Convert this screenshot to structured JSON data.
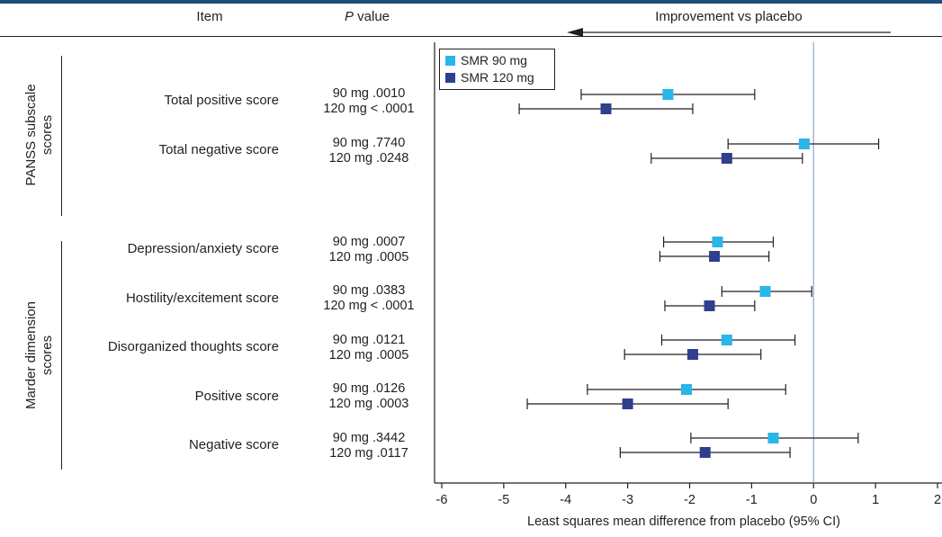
{
  "header": {
    "item": "Item",
    "p_italic": "P",
    "p_rest": " value",
    "improvement": "Improvement vs placebo"
  },
  "groups": [
    {
      "label_line1": "PANSS subscale",
      "label_line2": "scores"
    },
    {
      "label_line1": "Marder dimension",
      "label_line2": "scores"
    }
  ],
  "legend": [
    {
      "label": "SMR 90 mg",
      "color": "#29b6e8"
    },
    {
      "label": "SMR 120 mg",
      "color": "#2e3f8f"
    }
  ],
  "rows": [
    {
      "label": "Total positive score",
      "p90": "90 mg  .0010",
      "p120": "120 mg < .0001"
    },
    {
      "label": "Total negative score",
      "p90": "90 mg  .7740",
      "p120": "120 mg  .0248"
    },
    {
      "label": "Depression/anxiety score",
      "p90": "90 mg  .0007",
      "p120": "120 mg  .0005"
    },
    {
      "label": "Hostility/excitement score",
      "p90": "90 mg  .0383",
      "p120": "120 mg < .0001"
    },
    {
      "label": "Disorganized thoughts score",
      "p90": "90 mg  .0121",
      "p120": "120 mg  .0005"
    },
    {
      "label": "Positive score",
      "p90": "90 mg  .0126",
      "p120": "120 mg  .0003"
    },
    {
      "label": "Negative score",
      "p90": "90 mg  .3442",
      "p120": "120 mg  .0117"
    }
  ],
  "chart_data": {
    "type": "scatter",
    "subtype": "forest_plot",
    "xlabel": "Least squares mean difference from placebo (95% CI)",
    "xlim": [
      -6,
      2
    ],
    "xticks": [
      "-6",
      "-5",
      "-4",
      "-3",
      "-2",
      "-1",
      "0",
      "1",
      "2"
    ],
    "reference_line_x": 0,
    "categories": [
      "Total positive score",
      "Total negative score",
      "Depression/anxiety score",
      "Hostility/excitement score",
      "Disorganized thoughts score",
      "Positive score",
      "Negative score"
    ],
    "series": [
      {
        "name": "SMR 90 mg",
        "color": "#29b6e8",
        "estimate": [
          -2.35,
          -0.15,
          -1.55,
          -0.78,
          -1.4,
          -2.05,
          -0.65
        ],
        "ci_low": [
          -3.75,
          -1.38,
          -2.42,
          -1.48,
          -2.45,
          -3.65,
          -1.98
        ],
        "ci_high": [
          -0.95,
          1.05,
          -0.65,
          -0.03,
          -0.3,
          -0.45,
          0.72
        ]
      },
      {
        "name": "SMR 120 mg",
        "color": "#2e3f8f",
        "estimate": [
          -3.35,
          -1.4,
          -1.6,
          -1.68,
          -1.95,
          -3.0,
          -1.75
        ],
        "ci_low": [
          -4.75,
          -2.62,
          -2.48,
          -2.4,
          -3.05,
          -4.62,
          -3.12
        ],
        "ci_high": [
          -1.95,
          -0.18,
          -0.72,
          -0.95,
          -0.85,
          -1.38,
          -0.38
        ]
      }
    ]
  }
}
